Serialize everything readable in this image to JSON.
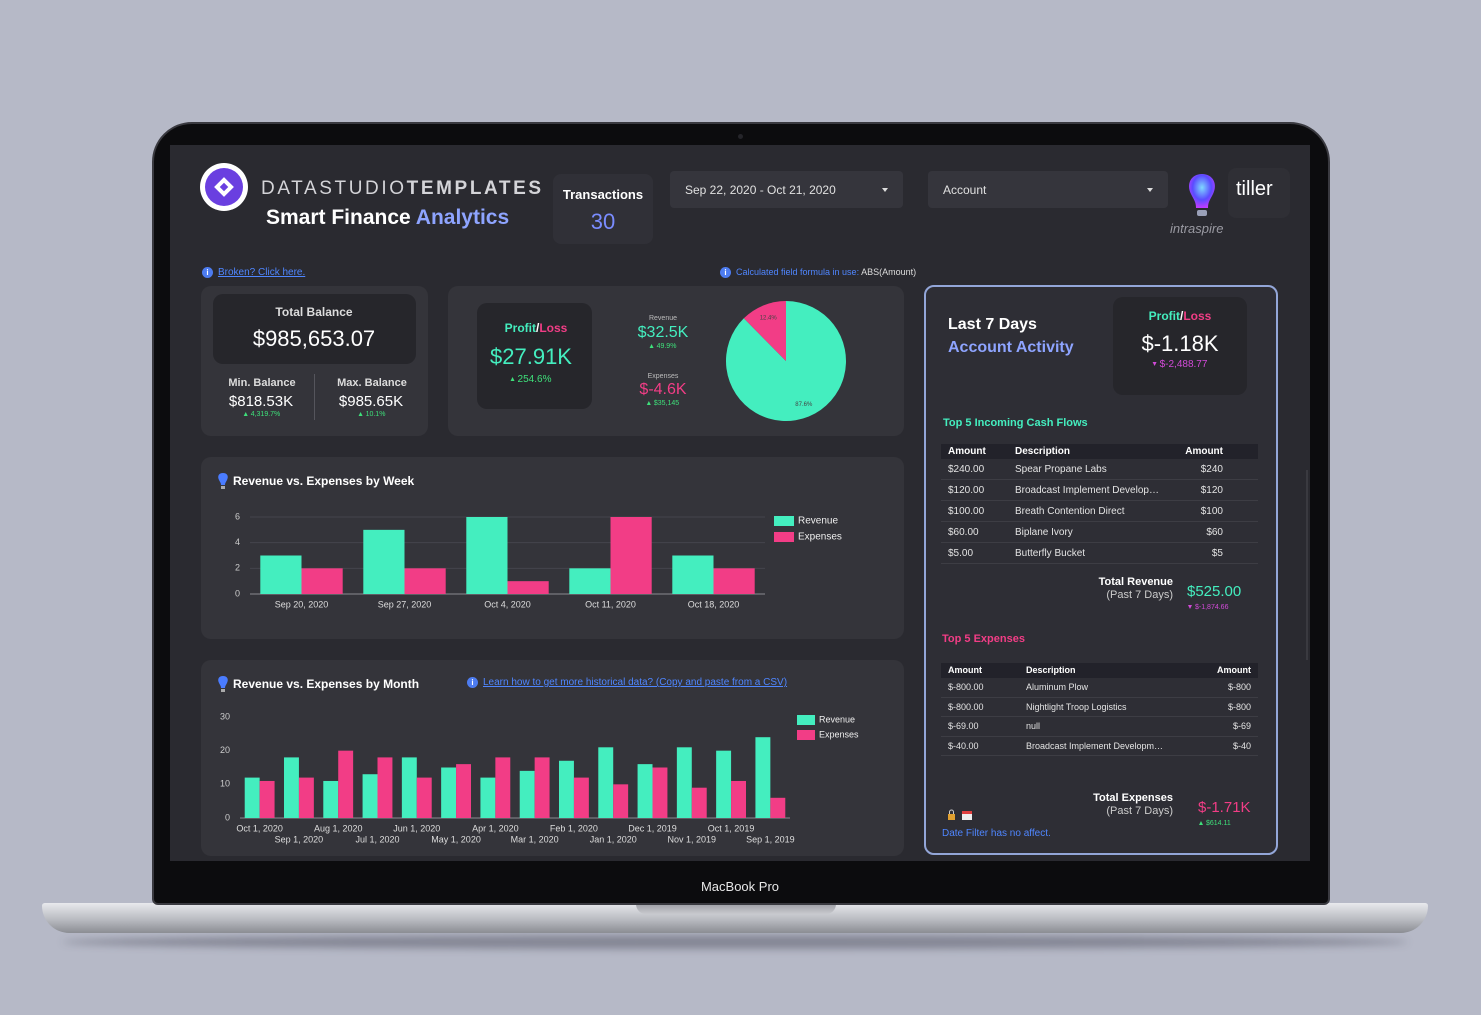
{
  "header": {
    "brand_light": "DATASTUDIO",
    "brand_bold": "TEMPLATES",
    "title": "Smart Finance",
    "title_accent": "Analytics"
  },
  "transactions": {
    "label": "Transactions",
    "value": 30
  },
  "filters": {
    "date_range": "Sep 22, 2020 - Oct 21, 2020",
    "account": "Account"
  },
  "partners": {
    "tiller": "tiller",
    "intraspire": "intraspire"
  },
  "notes": {
    "broken": "Broken? Click here.",
    "formula_label": "Calculated field formula in use:",
    "formula": "ABS(Amount)",
    "historical": "Learn how to get more historical data? (Copy and paste from a CSV)",
    "date_filter": "Date Filter has no affect."
  },
  "balance": {
    "title": "Total Balance",
    "value": "$985,653.07",
    "min_label": "Min. Balance",
    "min_value": "$818.53K",
    "min_change": "4,319.7%",
    "max_label": "Max. Balance",
    "max_value": "$985.65K",
    "max_change": "10.1%"
  },
  "profit_loss": {
    "label_profit": "Profit",
    "label_sep": "/",
    "label_loss": "Loss",
    "value": "$27.91K",
    "change": "254.6%",
    "revenue_label": "Revenue",
    "revenue_value": "$32.5K",
    "revenue_change": "49.9%",
    "expenses_label": "Expenses",
    "expenses_value": "$-4.6K",
    "expenses_change": "$35,145"
  },
  "pie_chart": {
    "type": "pie",
    "categories": [
      "Revenue",
      "Expenses"
    ],
    "values": [
      87.6,
      12.4
    ],
    "value_labels": [
      "87.6%",
      "12.4%"
    ],
    "colors": [
      "#44eebf",
      "#f23d86"
    ]
  },
  "weekly_chart": {
    "type": "bar",
    "title": "Revenue vs. Expenses by Week",
    "categories": [
      "Sep 20, 2020",
      "Sep 27, 2020",
      "Oct 4, 2020",
      "Oct 11, 2020",
      "Oct 18, 2020"
    ],
    "series": [
      {
        "name": "Revenue",
        "color": "#44eebf",
        "values": [
          3,
          5,
          6,
          2,
          3
        ]
      },
      {
        "name": "Expenses",
        "color": "#f23d86",
        "values": [
          2,
          2,
          1,
          6,
          2
        ]
      }
    ],
    "ylim": [
      0,
      6
    ],
    "yticks": [
      0,
      2,
      4,
      6
    ],
    "grid": true,
    "legend": "right"
  },
  "monthly_chart": {
    "type": "bar",
    "title": "Revenue vs. Expenses by Month",
    "categories": [
      "Oct 1, 2020",
      "Sep 1, 2020",
      "Aug 1, 2020",
      "Jul 1, 2020",
      "Jun 1, 2020",
      "May 1, 2020",
      "Apr 1, 2020",
      "Mar 1, 2020",
      "Feb 1, 2020",
      "Jan 1, 2020",
      "Dec 1, 2019",
      "Nov 1, 2019",
      "Oct 1, 2019",
      "Sep 1, 2019"
    ],
    "series": [
      {
        "name": "Revenue",
        "color": "#44eebf",
        "values": [
          12,
          18,
          11,
          13,
          18,
          15,
          12,
          14,
          17,
          21,
          16,
          21,
          20,
          24
        ]
      },
      {
        "name": "Expenses",
        "color": "#f23d86",
        "values": [
          11,
          12,
          20,
          18,
          12,
          16,
          18,
          18,
          12,
          10,
          15,
          9,
          11,
          6
        ]
      }
    ],
    "ylim": [
      0,
      30
    ],
    "yticks": [
      0,
      10,
      20,
      30
    ],
    "grid": false,
    "legend": "right"
  },
  "last7": {
    "title": "Last 7 Days",
    "subtitle": "Account Activity",
    "label_profit": "Profit",
    "label_sep": "/",
    "label_loss": "Loss",
    "value": "$-1.18K",
    "change": "$-2,488.77",
    "incoming": {
      "title": "Top 5 Incoming Cash Flows",
      "columns": [
        "Amount",
        "Description",
        "Amount"
      ],
      "rows": [
        [
          "$240.00",
          "Spear Propane Labs",
          "$240"
        ],
        [
          "$120.00",
          "Broadcast Implement Develop…",
          "$120"
        ],
        [
          "$100.00",
          "Breath Contention Direct",
          "$100"
        ],
        [
          "$60.00",
          "Biplane Ivory",
          "$60"
        ],
        [
          "$5.00",
          "Butterfly Bucket",
          "$5"
        ]
      ]
    },
    "total_revenue": {
      "label": "Total Revenue",
      "period": "(Past 7 Days)",
      "value": "$525.00",
      "change": "$-1,874.66"
    },
    "expenses": {
      "title": "Top 5 Expenses",
      "columns": [
        "Amount",
        "Description",
        "Amount"
      ],
      "rows": [
        [
          "$-800.00",
          "Aluminum Plow",
          "$-800"
        ],
        [
          "$-800.00",
          "Nightlight Troop Logistics",
          "$-800"
        ],
        [
          "$-69.00",
          "null",
          "$-69"
        ],
        [
          "$-40.00",
          "Broadcast Implement Developm…",
          "$-40"
        ]
      ]
    },
    "total_expenses": {
      "label": "Total Expenses",
      "period": "(Past 7 Days)",
      "value": "$-1.71K",
      "change": "$614.11"
    }
  },
  "device": "MacBook Pro"
}
